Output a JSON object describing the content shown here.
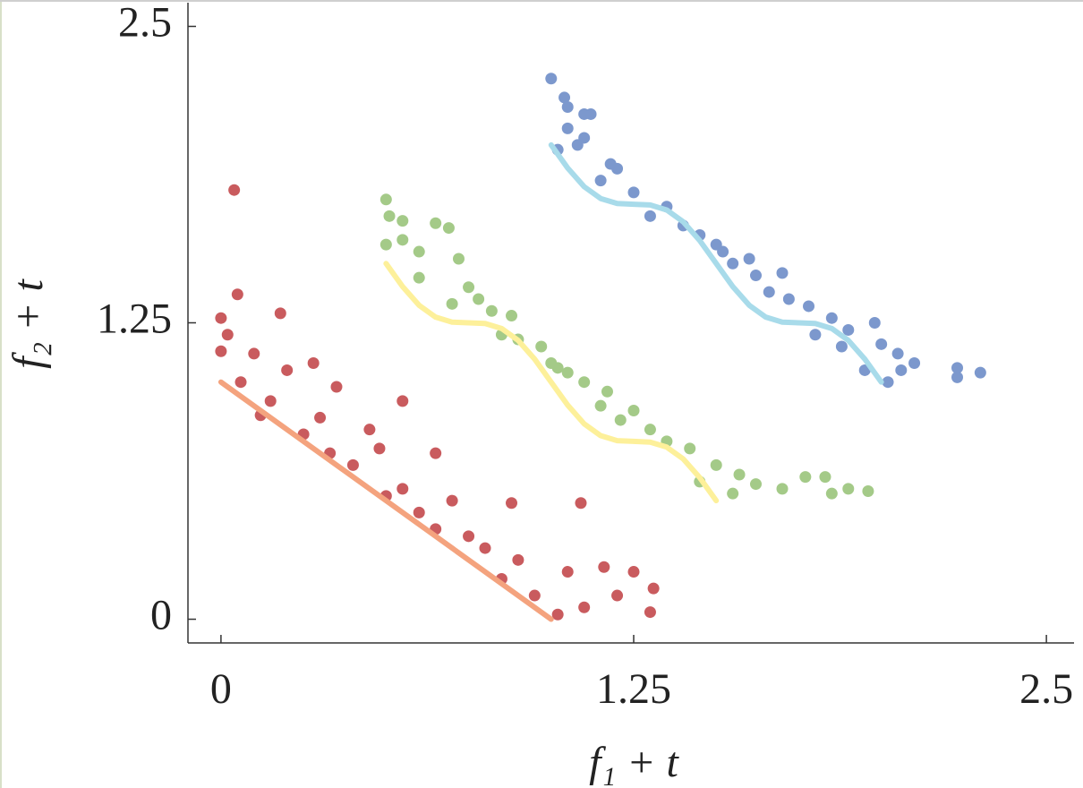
{
  "chart_data": {
    "type": "scatter",
    "xlabel": "f₁ + t",
    "ylabel": "f₂ + t",
    "xlim": [
      -0.1,
      2.6
    ],
    "ylim": [
      -0.1,
      2.6
    ],
    "xticks": [
      0,
      1.25,
      2.5
    ],
    "yticks": [
      0,
      1.25,
      2.5
    ],
    "series": [
      {
        "color": "#c95b5e",
        "x": [
          0.04,
          0.0,
          0.05,
          0.18,
          0.02,
          0.0,
          0.1,
          0.28,
          0.2,
          0.35,
          0.06,
          0.15,
          0.3,
          0.55,
          0.45,
          0.25,
          0.48,
          0.4,
          0.65,
          0.55,
          0.7,
          0.6,
          0.88,
          0.75,
          1.09,
          0.9,
          0.8,
          1.05,
          1.25,
          1.16,
          1.31,
          1.2,
          1.3,
          1.1,
          1.02,
          0.95,
          0.85,
          0.65,
          0.5,
          0.33,
          0.12
        ],
        "y": [
          1.81,
          1.27,
          1.37,
          1.29,
          1.2,
          1.13,
          1.12,
          1.08,
          1.05,
          0.98,
          1.0,
          0.92,
          0.85,
          0.92,
          0.8,
          0.78,
          0.72,
          0.65,
          0.7,
          0.55,
          0.5,
          0.45,
          0.49,
          0.35,
          0.49,
          0.25,
          0.3,
          0.2,
          0.2,
          0.22,
          0.13,
          0.1,
          0.03,
          0.05,
          0.02,
          0.1,
          0.17,
          0.38,
          0.52,
          0.7,
          0.86
        ]
      },
      {
        "color": "#a4ca88",
        "x": [
          0.5,
          0.51,
          0.55,
          0.65,
          0.69,
          0.5,
          0.6,
          0.72,
          0.6,
          0.75,
          0.7,
          0.82,
          0.85,
          0.88,
          0.97,
          1.02,
          1.1,
          1.0,
          1.17,
          1.21,
          1.3,
          1.35,
          1.42,
          1.5,
          1.57,
          1.62,
          1.7,
          1.77,
          1.83,
          1.85,
          1.9,
          1.96,
          1.55,
          1.45,
          1.25,
          1.15,
          0.9,
          0.78,
          0.55,
          1.05
        ],
        "y": [
          1.77,
          1.7,
          1.68,
          1.67,
          1.65,
          1.58,
          1.55,
          1.52,
          1.44,
          1.4,
          1.33,
          1.3,
          1.2,
          1.28,
          1.15,
          1.06,
          1.0,
          1.08,
          0.96,
          0.84,
          0.8,
          0.75,
          0.72,
          0.65,
          0.61,
          0.57,
          0.55,
          0.6,
          0.6,
          0.53,
          0.55,
          0.54,
          0.53,
          0.58,
          0.88,
          0.9,
          1.18,
          1.35,
          1.6,
          1.04
        ]
      },
      {
        "color": "#7c98cd",
        "x": [
          1.0,
          1.04,
          1.05,
          1.1,
          1.12,
          1.05,
          1.1,
          1.02,
          1.2,
          1.15,
          1.25,
          1.35,
          1.3,
          1.45,
          1.5,
          1.55,
          1.62,
          1.7,
          1.66,
          1.78,
          1.85,
          1.9,
          1.98,
          2.0,
          2.05,
          2.1,
          2.06,
          2.02,
          2.23,
          2.23,
          2.3,
          1.95,
          1.8,
          1.6,
          1.4,
          1.18,
          1.08,
          1.72,
          1.88,
          1.52
        ],
        "y": [
          2.28,
          2.2,
          2.16,
          2.13,
          2.13,
          2.07,
          2.03,
          1.98,
          1.9,
          1.85,
          1.8,
          1.74,
          1.7,
          1.62,
          1.58,
          1.5,
          1.45,
          1.46,
          1.38,
          1.32,
          1.27,
          1.22,
          1.25,
          1.16,
          1.12,
          1.08,
          1.05,
          1.0,
          1.06,
          1.02,
          1.04,
          1.05,
          1.2,
          1.52,
          1.66,
          1.92,
          2.0,
          1.35,
          1.15,
          1.55
        ]
      }
    ],
    "lines": [
      {
        "color": "#f4a37e",
        "x": [
          0,
          1
        ],
        "y": [
          1,
          0
        ]
      },
      {
        "color": "#fdf09a",
        "x": [
          0.5,
          0.55,
          0.6,
          0.65,
          0.7,
          0.75,
          0.8,
          0.85,
          0.9,
          0.95,
          1.0,
          1.05,
          1.1,
          1.15,
          1.2,
          1.25,
          1.3,
          1.35,
          1.4,
          1.45,
          1.5
        ],
        "y": [
          1.5,
          1.403,
          1.324,
          1.274,
          1.253,
          1.25,
          1.247,
          1.226,
          1.176,
          1.097,
          1.0,
          0.903,
          0.824,
          0.774,
          0.753,
          0.75,
          0.747,
          0.726,
          0.676,
          0.597,
          0.5
        ]
      },
      {
        "color": "#a8dbea",
        "x": [
          1.0,
          1.05,
          1.1,
          1.15,
          1.2,
          1.25,
          1.3,
          1.35,
          1.4,
          1.45,
          1.5,
          1.55,
          1.6,
          1.65,
          1.7,
          1.75,
          1.8,
          1.85,
          1.9,
          1.95,
          2.0
        ],
        "y": [
          2.0,
          1.903,
          1.824,
          1.774,
          1.753,
          1.75,
          1.747,
          1.726,
          1.676,
          1.597,
          1.5,
          1.403,
          1.324,
          1.274,
          1.253,
          1.25,
          1.247,
          1.226,
          1.176,
          1.097,
          1.0
        ]
      }
    ]
  }
}
